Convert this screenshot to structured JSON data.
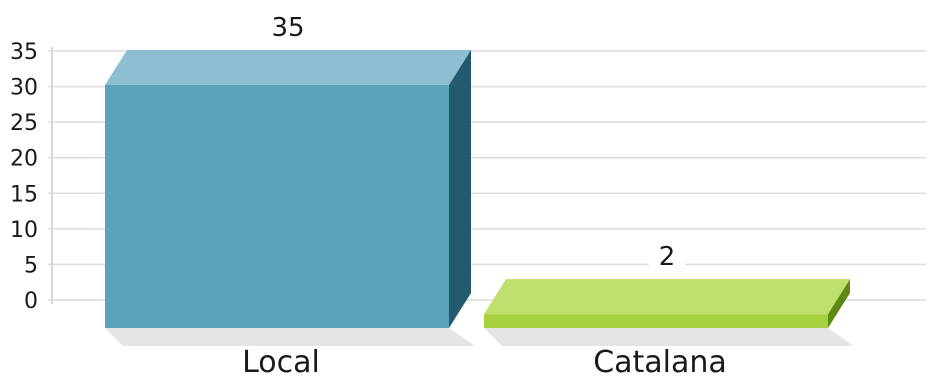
{
  "chart_data": {
    "type": "bar",
    "categories": [
      "Local",
      "Catalana"
    ],
    "values": [
      35,
      2
    ],
    "data_labels": [
      "35",
      "2"
    ],
    "ylim": [
      0,
      35
    ],
    "yticks": [
      0,
      5,
      10,
      15,
      20,
      25,
      30,
      35
    ],
    "grid": true,
    "legend": "none",
    "style": "3d",
    "colors": {
      "Local": {
        "front": "#5ba3b9",
        "top": "#8bbfd1",
        "side": "#245a6f"
      },
      "Catalana": {
        "front": "#a5d13f",
        "top": "#bfe06e",
        "side": "#5e8a14"
      },
      "grid": "#dcdcdc",
      "axis": "#c8c8c8",
      "shadow": "#cfcfcf"
    }
  }
}
